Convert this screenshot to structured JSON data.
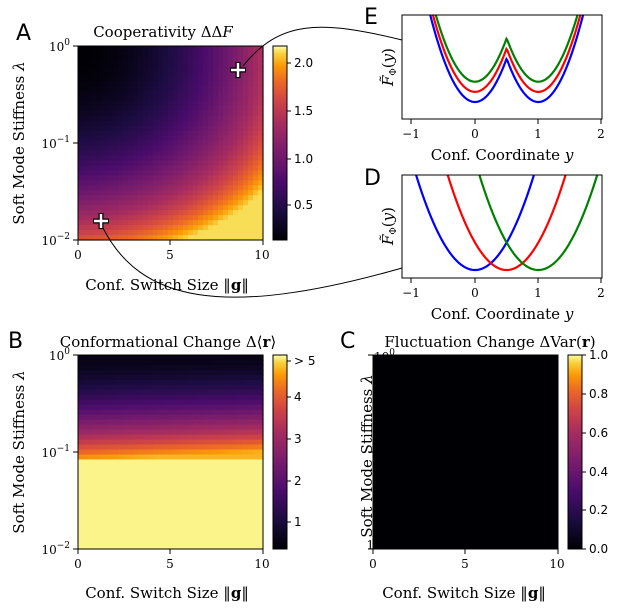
{
  "chart_data": [
    {
      "panel": "A",
      "type": "heatmap",
      "title": "Cooperativity ΔΔF",
      "xlabel": "Conf. Switch Size ‖g‖",
      "ylabel": "Soft Mode Stiffness λ",
      "xlim": [
        0,
        10
      ],
      "ylim": [
        0.01,
        1
      ],
      "yscale": "log",
      "x_ticks": [
        "0",
        "5",
        "10"
      ],
      "y_ticks": [
        "10−2",
        "10−1",
        "10⁰"
      ],
      "colorbar": {
        "range": [
          0,
          2.2
        ],
        "ticks": [
          "0.5",
          "1.0",
          "1.5",
          "2.0"
        ],
        "colormap": "inferno"
      },
      "markers": [
        {
          "x": 8.7,
          "y": 0.58,
          "symbol": "+"
        },
        {
          "x": 1.2,
          "y": 0.0155,
          "symbol": "+"
        }
      ]
    },
    {
      "panel": "E",
      "type": "line",
      "xlabel": "Conf. Coordinate y",
      "ylabel": "F̃Φ(y)",
      "xlim": [
        -1.25,
        2.15
      ],
      "x_ticks": [
        "−1",
        "0",
        "1",
        "2"
      ],
      "series": [
        {
          "color": "#0000ff",
          "kind": "double-well",
          "min_value": 0.0
        },
        {
          "color": "#ff0000",
          "kind": "double-well",
          "min_value": 0.35
        },
        {
          "color": "#008000",
          "kind": "double-well",
          "min_value": 0.7
        }
      ]
    },
    {
      "panel": "D",
      "type": "line",
      "xlabel": "Conf. Coordinate y",
      "ylabel": "F̃Φ(y)",
      "xlim": [
        -1.25,
        2.15
      ],
      "x_ticks": [
        "−1",
        "0",
        "1",
        "2"
      ],
      "series": [
        {
          "color": "#0000ff",
          "center": 0.0
        },
        {
          "color": "#ff0000",
          "center": 0.5
        },
        {
          "color": "#008000",
          "center": 1.0
        }
      ]
    },
    {
      "panel": "B",
      "type": "heatmap",
      "title": "Conformational Change Δ⟨r⟩",
      "xlabel": "Conf. Switch Size ‖g‖",
      "ylabel": "Soft Mode Stiffness λ",
      "xlim": [
        0,
        10
      ],
      "ylim": [
        0.01,
        1
      ],
      "yscale": "log",
      "x_ticks": [
        "0",
        "5",
        "10"
      ],
      "y_ticks": [
        "10−2",
        "10−1",
        "10⁰"
      ],
      "colorbar": {
        "range": [
          0,
          5.5
        ],
        "ticks": [
          "1",
          "2",
          "3",
          "4",
          "> 5"
        ],
        "colormap": "inferno"
      }
    },
    {
      "panel": "C",
      "type": "heatmap",
      "title": "Fluctuation Change ΔVar(r)",
      "xlabel": "Conf. Switch Size ‖g‖",
      "ylabel": "Soft Mode Stiffness λ",
      "xlim": [
        0,
        10
      ],
      "ylim": [
        0.01,
        1
      ],
      "yscale": "log",
      "x_ticks": [
        "0",
        "5",
        "10"
      ],
      "y_ticks": [
        "10−2",
        "10−1",
        "10⁰"
      ],
      "colorbar": {
        "range": [
          0,
          1.0
        ],
        "ticks": [
          "0.0",
          "0.2",
          "0.4",
          "0.6",
          "0.8",
          "1.0"
        ],
        "colormap": "inferno"
      },
      "uniform_value": 0.0
    }
  ],
  "labels": {
    "panel_a": "A",
    "panel_b": "B",
    "panel_c": "C",
    "panel_d": "D",
    "panel_e": "E"
  }
}
